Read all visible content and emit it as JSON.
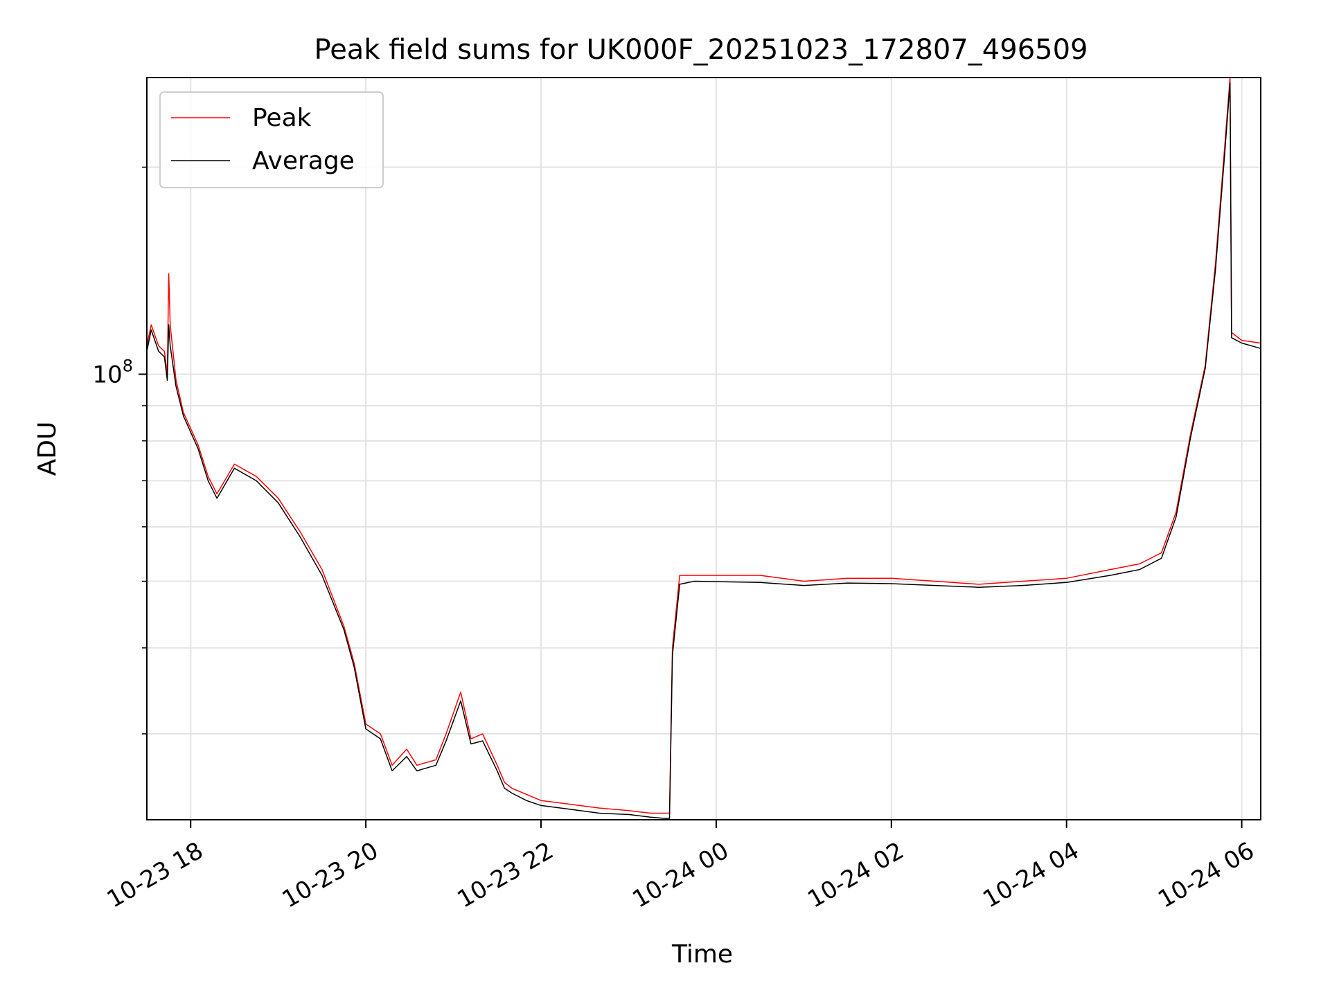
{
  "chart_data": {
    "type": "line",
    "title": "Peak field sums for UK000F_20251023_172807_496509",
    "xlabel": "Time",
    "ylabel": "ADU",
    "yscale": "log",
    "xlim": [
      "2025-10-23T17:30",
      "2025-10-24T06:13"
    ],
    "ylim": [
      22500000,
      270000000
    ],
    "grid": true,
    "legend_position": "upper-left",
    "x_ticks": [
      {
        "x": "2025-10-23T18:00",
        "label": "10-23 18"
      },
      {
        "x": "2025-10-23T20:00",
        "label": "10-23 20"
      },
      {
        "x": "2025-10-23T22:00",
        "label": "10-23 22"
      },
      {
        "x": "2025-10-24T00:00",
        "label": "10-24 00"
      },
      {
        "x": "2025-10-24T02:00",
        "label": "10-24 02"
      },
      {
        "x": "2025-10-24T04:00",
        "label": "10-24 04"
      },
      {
        "x": "2025-10-24T06:00",
        "label": "10-24 06"
      }
    ],
    "y_tick_label": {
      "base": "10",
      "exp": "8",
      "value": 100000000
    },
    "y_minor_ticks": [
      30000000,
      40000000,
      50000000,
      60000000,
      70000000,
      80000000,
      90000000,
      200000000
    ],
    "series": [
      {
        "name": "Peak",
        "color": "#ff0000",
        "x": [
          "2025-10-23T17:30",
          "2025-10-23T17:33",
          "2025-10-23T17:38",
          "2025-10-23T17:42",
          "2025-10-23T17:44",
          "2025-10-23T17:45",
          "2025-10-23T17:46",
          "2025-10-23T17:50",
          "2025-10-23T17:55",
          "2025-10-23T18:05",
          "2025-10-23T18:12",
          "2025-10-23T18:18",
          "2025-10-23T18:25",
          "2025-10-23T18:30",
          "2025-10-23T18:45",
          "2025-10-23T19:00",
          "2025-10-23T19:15",
          "2025-10-23T19:30",
          "2025-10-23T19:45",
          "2025-10-23T19:52",
          "2025-10-23T20:00",
          "2025-10-23T20:10",
          "2025-10-23T20:18",
          "2025-10-23T20:28",
          "2025-10-23T20:35",
          "2025-10-23T20:40",
          "2025-10-23T20:48",
          "2025-10-23T20:55",
          "2025-10-23T21:05",
          "2025-10-23T21:12",
          "2025-10-23T21:20",
          "2025-10-23T21:30",
          "2025-10-23T21:35",
          "2025-10-23T21:40",
          "2025-10-23T21:50",
          "2025-10-23T22:00",
          "2025-10-23T22:20",
          "2025-10-23T22:40",
          "2025-10-23T23:00",
          "2025-10-23T23:15",
          "2025-10-23T23:25",
          "2025-10-23T23:28",
          "2025-10-23T23:30",
          "2025-10-23T23:35",
          "2025-10-23T23:45",
          "2025-10-24T00:30",
          "2025-10-24T01:00",
          "2025-10-24T01:30",
          "2025-10-24T02:00",
          "2025-10-24T02:30",
          "2025-10-24T03:00",
          "2025-10-24T03:30",
          "2025-10-24T04:00",
          "2025-10-24T04:30",
          "2025-10-24T04:50",
          "2025-10-24T05:05",
          "05:15",
          "2025-10-24T05:25",
          "2025-10-24T05:35",
          "2025-10-24T05:42",
          "2025-10-24T05:48",
          "2025-10-24T05:52",
          "2025-10-24T05:53",
          "2025-10-24T06:00",
          "2025-10-24T06:13"
        ],
        "y": [
          110000000,
          118000000,
          110000000,
          108000000,
          100000000,
          140000000,
          118000000,
          98000000,
          88000000,
          79000000,
          71000000,
          67000000,
          71000000,
          74000000,
          71000000,
          66000000,
          59000000,
          52000000,
          43000000,
          38000000,
          31000000,
          30000000,
          27000000,
          28500000,
          27000000,
          27200000,
          27500000,
          30000000,
          34500000,
          29500000,
          30000000,
          27000000,
          25500000,
          25000000,
          24500000,
          24000000,
          23700000,
          23400000,
          23200000,
          23000000,
          23000000,
          23000000,
          40000000,
          51000000,
          51000000,
          51000000,
          50000000,
          50500000,
          50500000,
          50000000,
          49500000,
          50000000,
          50500000,
          52000000,
          53000000,
          55000000,
          63000000,
          82000000,
          103000000,
          145000000,
          210000000,
          270000000,
          115000000,
          112000000,
          111000000
        ]
      },
      {
        "name": "Average",
        "color": "#000000",
        "x": [
          "2025-10-23T17:30",
          "2025-10-23T17:33",
          "2025-10-23T17:38",
          "2025-10-23T17:42",
          "2025-10-23T17:44",
          "2025-10-23T17:45",
          "2025-10-23T17:46",
          "2025-10-23T17:50",
          "2025-10-23T17:55",
          "2025-10-23T18:05",
          "2025-10-23T18:12",
          "2025-10-23T18:18",
          "2025-10-23T18:25",
          "2025-10-23T18:30",
          "2025-10-23T18:45",
          "2025-10-23T19:00",
          "2025-10-23T19:15",
          "2025-10-23T19:30",
          "2025-10-23T19:45",
          "2025-10-23T19:52",
          "2025-10-23T20:00",
          "2025-10-23T20:10",
          "2025-10-23T20:18",
          "2025-10-23T20:28",
          "2025-10-23T20:35",
          "2025-10-23T20:40",
          "2025-10-23T20:48",
          "2025-10-23T20:55",
          "2025-10-23T21:05",
          "2025-10-23T21:12",
          "2025-10-23T21:20",
          "2025-10-23T21:30",
          "2025-10-23T21:35",
          "2025-10-23T21:40",
          "2025-10-23T21:50",
          "2025-10-23T22:00",
          "2025-10-23T22:20",
          "2025-10-23T22:40",
          "2025-10-23T23:00",
          "2025-10-23T23:15",
          "2025-10-23T23:25",
          "2025-10-23T23:28",
          "2025-10-23T23:30",
          "2025-10-23T23:35",
          "2025-10-23T23:45",
          "2025-10-24T00:30",
          "2025-10-24T01:00",
          "2025-10-24T01:30",
          "2025-10-24T02:00",
          "2025-10-24T02:30",
          "2025-10-24T03:00",
          "2025-10-24T03:30",
          "2025-10-24T04:00",
          "2025-10-24T04:30",
          "2025-10-24T04:50",
          "2025-10-24T05:05",
          "2025-10-24T05:15",
          "2025-10-24T05:25",
          "2025-10-24T05:35",
          "2025-10-24T05:42",
          "2025-10-24T05:48",
          "2025-10-24T05:52",
          "2025-10-24T05:53",
          "2025-10-24T06:00",
          "2025-10-24T06:13"
        ],
        "y": [
          108000000,
          116000000,
          108000000,
          106000000,
          98000000,
          118000000,
          110000000,
          96000000,
          87000000,
          78000000,
          70000000,
          66000000,
          70000000,
          73000000,
          70000000,
          65000000,
          58000000,
          51000000,
          42500000,
          37500000,
          30500000,
          29500000,
          26500000,
          27800000,
          26500000,
          26700000,
          27000000,
          29300000,
          33500000,
          29000000,
          29300000,
          26500000,
          25000000,
          24600000,
          24000000,
          23600000,
          23300000,
          23000000,
          22900000,
          22700000,
          22600000,
          22600000,
          39000000,
          49500000,
          50000000,
          49800000,
          49300000,
          49700000,
          49600000,
          49300000,
          49000000,
          49300000,
          49800000,
          51000000,
          52000000,
          54000000,
          62000000,
          81000000,
          102000000,
          142000000,
          205000000,
          265000000,
          113000000,
          111000000,
          109000000
        ]
      }
    ]
  }
}
